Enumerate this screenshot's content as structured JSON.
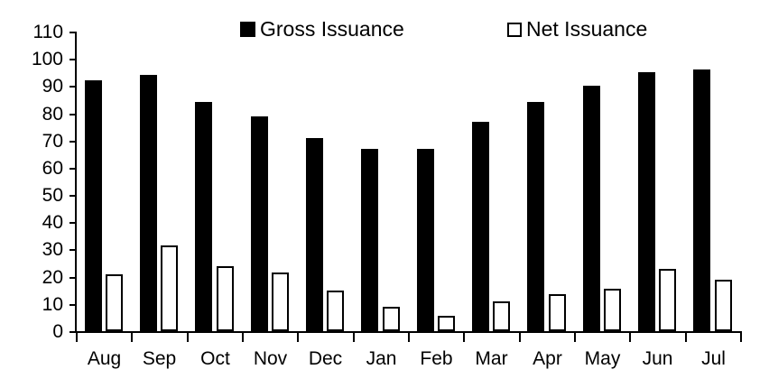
{
  "chart_data": {
    "type": "bar",
    "title": "",
    "xlabel": "",
    "ylabel": "",
    "categories": [
      "Aug",
      "Sep",
      "Oct",
      "Nov",
      "Dec",
      "Jan",
      "Feb",
      "Mar",
      "Apr",
      "May",
      "Jun",
      "Jul"
    ],
    "series": [
      {
        "name": "Gross Issuance",
        "style": "filled",
        "color": "#000000",
        "values": [
          92,
          94,
          84,
          79,
          71,
          67,
          67,
          77,
          84,
          90,
          95,
          96
        ]
      },
      {
        "name": "Net Issuance",
        "style": "outline",
        "color": "#ffffff",
        "outline_color": "#000000",
        "values": [
          21,
          31.5,
          24,
          21.5,
          15,
          9,
          5.5,
          11,
          13.5,
          15.5,
          23,
          19
        ]
      }
    ],
    "ylim": [
      0,
      110
    ],
    "yticks": [
      0,
      10,
      20,
      30,
      40,
      50,
      60,
      70,
      80,
      90,
      100,
      110
    ],
    "grid": false,
    "legend_position": "top"
  },
  "legend": {
    "items": [
      {
        "label": "Gross Issuance",
        "swatch": "filled"
      },
      {
        "label": "Net Issuance",
        "swatch": "outline"
      }
    ]
  },
  "colors": {
    "foreground": "#000000",
    "background": "#ffffff"
  }
}
